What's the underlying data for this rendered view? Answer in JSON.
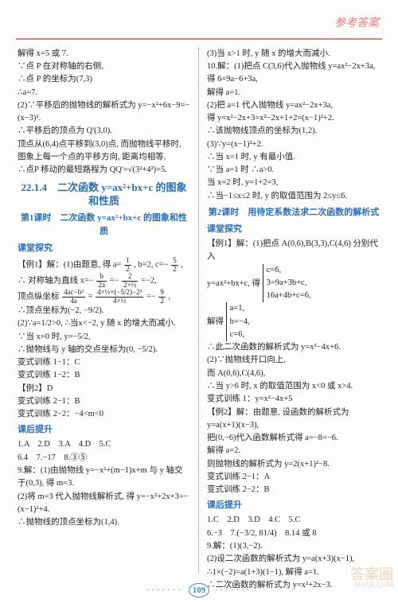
{
  "header": {
    "text": "参考答案"
  },
  "pageNumber": "109",
  "watermark": {
    "line1": "答案圈",
    "line2": "MXQE.COM"
  },
  "left": {
    "p": [
      "解得 x=5 或 7.",
      "∵点 P 在对称轴的右侧,",
      "∴点 P 的坐标为(7,3)",
      "∴a=7.",
      "(2)∵平移后的抛物线的解析式为 y=−x²+6x−9=−(x−3)².",
      "∴平移后的顶点为 Q'(3,0).",
      "顶点从(6,4)点平移到(3,0)点, 而抛物线平移时, 图象上每一个点的平移方向, 距离均相等,",
      "∴点P 移动的最短路程为 QQ'=√(3²+4²)=5."
    ],
    "title": "22.1.4　二次函数 y=ax²+bx+c 的图象和性质",
    "sub1": "第1课时　二次函数 y=ax²+bx+c 的图象和性质",
    "sec1": "课堂探究",
    "ex1": [
      "【例1】解：(1)由题意, 得 a=",
      ", b=2, c=−",
      ",",
      "∴ 对称轴为直线 x=−",
      "=−",
      "=−2,"
    ],
    "frac_a": {
      "n": "1",
      "d": "2"
    },
    "frac_c": {
      "n": "5",
      "d": "2"
    },
    "frac_b2a": {
      "n": "b",
      "d": "2a"
    },
    "frac_v1": {
      "n": "2",
      "d": "2×½"
    },
    "vert": [
      "顶点纵坐标",
      "=",
      " =−",
      ","
    ],
    "frac_vert1": {
      "n": "4ac−b²",
      "d": "4a"
    },
    "frac_vert2": {
      "n": "4×½×(−5/2)−2²",
      "d": "4×½"
    },
    "frac_vert3": {
      "n": "9",
      "d": "2"
    },
    "p2": [
      "∴顶点坐标为(−2, −9/2).",
      "(2)∵a=1/2>0, ∴当x<−2, y 随 x 的增大而减小.",
      "∵当 x=0 时, y=−5/2,",
      "∴抛物线与 y 轴的交点坐标为(0, −5/2)."
    ],
    "bx": [
      "变式训练 1−1：C",
      "变式训练 1−2：B",
      "【例2】D",
      "变式训练 2−1：B",
      "变式训练 2−2：−4<m<0"
    ],
    "sec2": "课后提升",
    "hw": [
      "1.A　2.D　3.A　4.D　5.C",
      "6.4　7.−17　8.③⑤",
      "9.解：(1)由抛物线 y=−x²+(m−1)x+m 与 y 轴交于(0,3), 得 m=3.",
      "(2)将 m=3 代入抛物线解析式, 得 y=−x²+2x+3=−(x−1)²+4.",
      "∴抛物线的顶点坐标为(1,4)."
    ]
  },
  "right": {
    "p": [
      "(3)当 x>1 时, y 随 x 的增大而减小.",
      "10.解：(1)把点 C(3,6)代入抛物线 y=ax²−2x+3a,",
      "得 6=9a−6+3a,",
      "解得 a=1.",
      "(2)把 a=1 代入抛物线 y=ax²−2x+3a,",
      "得 y=x²−2x+3=x²−2x+1+2=(x−1)²+2.",
      "∴该抛物线顶点的坐标为(1,2).",
      "(3)∵y=(x−1)²+2.",
      "∴当 x=1 时, y 有最小值.",
      "∵当 a=1 时  ∴a>0.",
      "当 x=2 时, y=1+2=3,",
      "∴当−1≤x≤2 时, y 的取值范围为 2≤y≤6."
    ],
    "sub2": "第2课时　用待定系数法求二次函数的解析式",
    "sec1": "课堂探究",
    "ex1": [
      "【例1】解：(1)把点 A(0,6),B(3,3),C(4,6) 分别代入"
    ],
    "eq": [
      "y=ax²+bx+c, 得",
      "c=6,",
      "3=9a+3b+c,",
      "16a+4b+c=6,",
      "解得",
      "a=1,",
      "b=−4,",
      "c=6,"
    ],
    "p2": [
      "∴此二次函数的解析式为 y=x²−4x+6.",
      "(2)∵抛物线开口向上,",
      "而 A(0,6),C(4,6),",
      "∴当 y>6 时, x 的取值范围为 x<0 或 x>4.",
      "变式训练 1：y=x²−4x+5",
      "【例2】解：由题意, 设函数的解析式为 y=a(x+1)(x−3),",
      "把(0,−6)代入函数解析式得 a=−8=−6.",
      "解得 a=2.",
      "则抛物线的解析式为 y=2(x+1)²−8.",
      "变式训练 2−1：A",
      "变式训练 2−2：B"
    ],
    "sec2": "课后提升",
    "hw": [
      "1.C　2.D　3.D　4.C　5.C",
      "6.−3　7.(−3/2, 81/4)　8.14 或 8",
      "9.解：(1)(3,−2).",
      "(2)设二次函数的解析式为 y=a(x+3)(x−1),",
      "∴1×(−2)=a(1+3)(1−1), 解得 a=1.",
      "∴二次函数的解析式为 y=x²+2x−3."
    ]
  }
}
